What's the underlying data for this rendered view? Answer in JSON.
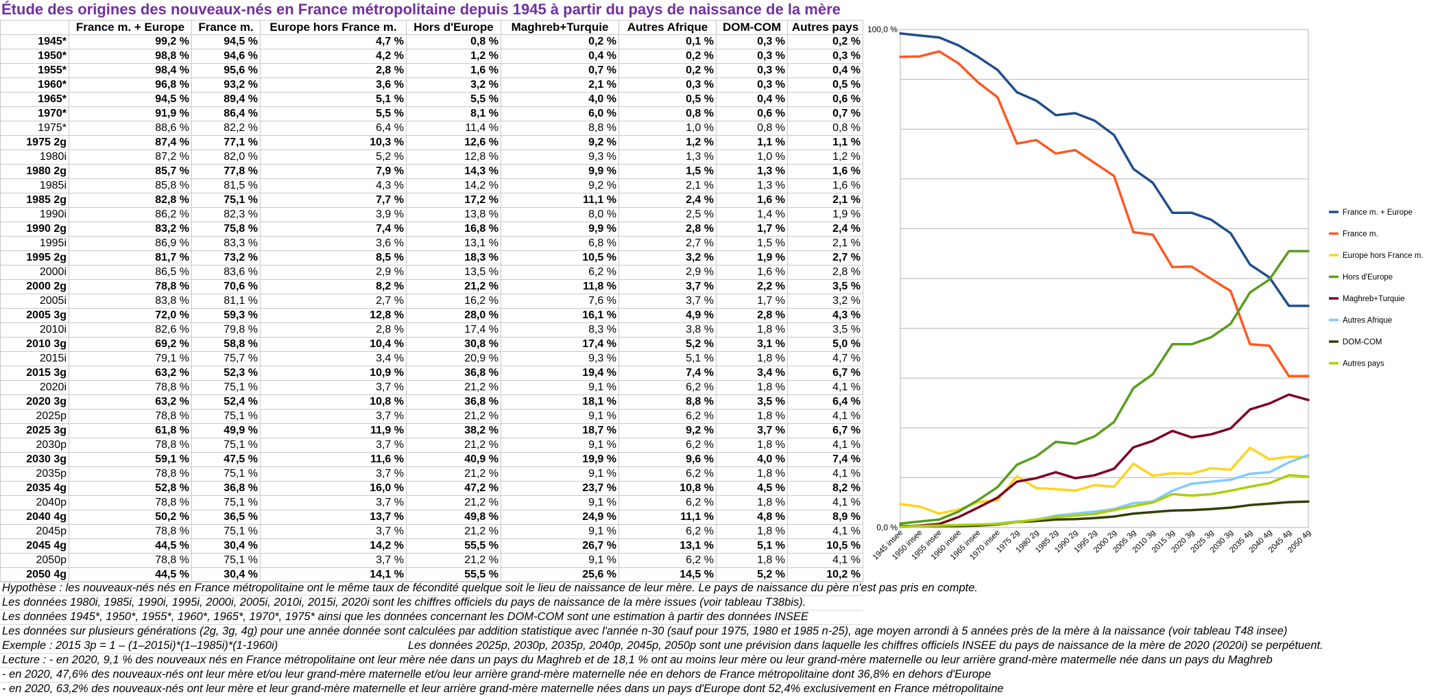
{
  "title": "Étude des origines des nouveaux-nés en France métropolitaine depuis 1945 à partir du pays de naissance de la mère",
  "table": {
    "headers": [
      "",
      "France m. + Europe",
      "France m.",
      "Europe hors France m.",
      "Hors d'Europe",
      "Maghreb+Turquie",
      "Autres Afrique",
      "DOM-COM",
      "Autres pays"
    ],
    "rows": [
      {
        "bold": true,
        "cells": [
          "1945*",
          "99,2 %",
          "94,5 %",
          "4,7 %",
          "0,8 %",
          "0,2 %",
          "0,1 %",
          "0,3 %",
          "0,2 %"
        ]
      },
      {
        "bold": true,
        "cells": [
          "1950*",
          "98,8 %",
          "94,6 %",
          "4,2 %",
          "1,2 %",
          "0,4 %",
          "0,2 %",
          "0,3 %",
          "0,3 %"
        ]
      },
      {
        "bold": true,
        "cells": [
          "1955*",
          "98,4 %",
          "95,6 %",
          "2,8 %",
          "1,6 %",
          "0,7 %",
          "0,2 %",
          "0,3 %",
          "0,4 %"
        ]
      },
      {
        "bold": true,
        "cells": [
          "1960*",
          "96,8 %",
          "93,2 %",
          "3,6 %",
          "3,2 %",
          "2,1 %",
          "0,3 %",
          "0,3 %",
          "0,5 %"
        ]
      },
      {
        "bold": true,
        "cells": [
          "1965*",
          "94,5 %",
          "89,4 %",
          "5,1 %",
          "5,5 %",
          "4,0 %",
          "0,5 %",
          "0,4 %",
          "0,6 %"
        ]
      },
      {
        "bold": true,
        "cells": [
          "1970*",
          "91,9 %",
          "86,4 %",
          "5,5 %",
          "8,1 %",
          "6,0 %",
          "0,8 %",
          "0,6 %",
          "0,7 %"
        ]
      },
      {
        "bold": false,
        "cells": [
          "1975*",
          "88,6 %",
          "82,2 %",
          "6,4 %",
          "11,4 %",
          "8,8 %",
          "1,0 %",
          "0,8 %",
          "0,8 %"
        ]
      },
      {
        "bold": true,
        "cells": [
          "1975 2g",
          "87,4 %",
          "77,1 %",
          "10,3 %",
          "12,6 %",
          "9,2 %",
          "1,2 %",
          "1,1 %",
          "1,1 %"
        ]
      },
      {
        "bold": false,
        "cells": [
          "1980i",
          "87,2 %",
          "82,0 %",
          "5,2 %",
          "12,8 %",
          "9,3 %",
          "1,3 %",
          "1,0 %",
          "1,2 %"
        ]
      },
      {
        "bold": true,
        "cells": [
          "1980 2g",
          "85,7 %",
          "77,8 %",
          "7,9 %",
          "14,3 %",
          "9,9 %",
          "1,5 %",
          "1,3 %",
          "1,6 %"
        ]
      },
      {
        "bold": false,
        "cells": [
          "1985i",
          "85,8 %",
          "81,5 %",
          "4,3 %",
          "14,2 %",
          "9,2 %",
          "2,1 %",
          "1,3 %",
          "1,6 %"
        ]
      },
      {
        "bold": true,
        "cells": [
          "1985 2g",
          "82,8 %",
          "75,1 %",
          "7,7 %",
          "17,2 %",
          "11,1 %",
          "2,4 %",
          "1,6 %",
          "2,1 %"
        ]
      },
      {
        "bold": false,
        "cells": [
          "1990i",
          "86,2 %",
          "82,3 %",
          "3,9 %",
          "13,8 %",
          "8,0 %",
          "2,5 %",
          "1,4 %",
          "1,9 %"
        ]
      },
      {
        "bold": true,
        "cells": [
          "1990 2g",
          "83,2 %",
          "75,8 %",
          "7,4 %",
          "16,8 %",
          "9,9 %",
          "2,8 %",
          "1,7 %",
          "2,4 %"
        ]
      },
      {
        "bold": false,
        "cells": [
          "1995i",
          "86,9 %",
          "83,3 %",
          "3,6 %",
          "13,1 %",
          "6,8 %",
          "2,7 %",
          "1,5 %",
          "2,1 %"
        ]
      },
      {
        "bold": true,
        "cells": [
          "1995 2g",
          "81,7 %",
          "73,2 %",
          "8,5 %",
          "18,3 %",
          "10,5 %",
          "3,2 %",
          "1,9 %",
          "2,7 %"
        ]
      },
      {
        "bold": false,
        "cells": [
          "2000i",
          "86,5 %",
          "83,6 %",
          "2,9 %",
          "13,5 %",
          "6,2 %",
          "2,9 %",
          "1,6 %",
          "2,8 %"
        ]
      },
      {
        "bold": true,
        "cells": [
          "2000 2g",
          "78,8 %",
          "70,6 %",
          "8,2 %",
          "21,2 %",
          "11,8 %",
          "3,7 %",
          "2,2 %",
          "3,5 %"
        ]
      },
      {
        "bold": false,
        "cells": [
          "2005i",
          "83,8 %",
          "81,1 %",
          "2,7 %",
          "16,2 %",
          "7,6 %",
          "3,7 %",
          "1,7 %",
          "3,2 %"
        ]
      },
      {
        "bold": true,
        "cells": [
          "2005 3g",
          "72,0 %",
          "59,3 %",
          "12,8 %",
          "28,0 %",
          "16,1 %",
          "4,9 %",
          "2,8 %",
          "4,3 %"
        ]
      },
      {
        "bold": false,
        "cells": [
          "2010i",
          "82,6 %",
          "79,8 %",
          "2,8 %",
          "17,4 %",
          "8,3 %",
          "3,8 %",
          "1,8 %",
          "3,5 %"
        ]
      },
      {
        "bold": true,
        "cells": [
          "2010 3g",
          "69,2 %",
          "58,8 %",
          "10,4 %",
          "30,8 %",
          "17,4 %",
          "5,2 %",
          "3,1 %",
          "5,0 %"
        ]
      },
      {
        "bold": false,
        "cells": [
          "2015i",
          "79,1 %",
          "75,7 %",
          "3,4 %",
          "20,9 %",
          "9,3 %",
          "5,1 %",
          "1,8 %",
          "4,7 %"
        ]
      },
      {
        "bold": true,
        "cells": [
          "2015 3g",
          "63,2 %",
          "52,3 %",
          "10,9 %",
          "36,8 %",
          "19,4 %",
          "7,4 %",
          "3,4 %",
          "6,7 %"
        ]
      },
      {
        "bold": false,
        "cells": [
          "2020i",
          "78,8 %",
          "75,1 %",
          "3,7 %",
          "21,2 %",
          "9,1 %",
          "6,2 %",
          "1,8 %",
          "4,1 %"
        ]
      },
      {
        "bold": true,
        "cells": [
          "2020 3g",
          "63,2 %",
          "52,4 %",
          "10,8 %",
          "36,8 %",
          "18,1 %",
          "8,8 %",
          "3,5 %",
          "6,4 %"
        ]
      },
      {
        "bold": false,
        "cells": [
          "2025p",
          "78,8 %",
          "75,1 %",
          "3,7 %",
          "21,2 %",
          "9,1 %",
          "6,2 %",
          "1,8 %",
          "4,1 %"
        ]
      },
      {
        "bold": true,
        "cells": [
          "2025 3g",
          "61,8 %",
          "49,9 %",
          "11,9 %",
          "38,2 %",
          "18,7 %",
          "9,2 %",
          "3,7 %",
          "6,7 %"
        ]
      },
      {
        "bold": false,
        "cells": [
          "2030p",
          "78,8 %",
          "75,1 %",
          "3,7 %",
          "21,2 %",
          "9,1 %",
          "6,2 %",
          "1,8 %",
          "4,1 %"
        ]
      },
      {
        "bold": true,
        "cells": [
          "2030 3g",
          "59,1 %",
          "47,5 %",
          "11,6 %",
          "40,9 %",
          "19,9 %",
          "9,6 %",
          "4,0 %",
          "7,4 %"
        ]
      },
      {
        "bold": false,
        "cells": [
          "2035p",
          "78,8 %",
          "75,1 %",
          "3,7 %",
          "21,2 %",
          "9,1 %",
          "6,2 %",
          "1,8 %",
          "4,1 %"
        ]
      },
      {
        "bold": true,
        "cells": [
          "2035 4g",
          "52,8 %",
          "36,8 %",
          "16,0 %",
          "47,2 %",
          "23,7 %",
          "10,8 %",
          "4,5 %",
          "8,2 %"
        ]
      },
      {
        "bold": false,
        "cells": [
          "2040p",
          "78,8 %",
          "75,1 %",
          "3,7 %",
          "21,2 %",
          "9,1 %",
          "6,2 %",
          "1,8 %",
          "4,1 %"
        ]
      },
      {
        "bold": true,
        "cells": [
          "2040 4g",
          "50,2 %",
          "36,5 %",
          "13,7 %",
          "49,8 %",
          "24,9 %",
          "11,1 %",
          "4,8 %",
          "8,9 %"
        ]
      },
      {
        "bold": false,
        "cells": [
          "2045p",
          "78,8 %",
          "75,1 %",
          "3,7 %",
          "21,2 %",
          "9,1 %",
          "6,2 %",
          "1,8 %",
          "4,1 %"
        ]
      },
      {
        "bold": true,
        "cells": [
          "2045 4g",
          "44,5 %",
          "30,4 %",
          "14,2 %",
          "55,5 %",
          "26,7 %",
          "13,1 %",
          "5,1 %",
          "10,5 %"
        ]
      },
      {
        "bold": false,
        "cells": [
          "2050p",
          "78,8 %",
          "75,1 %",
          "3,7 %",
          "21,2 %",
          "9,1 %",
          "6,2 %",
          "1,8 %",
          "4,1 %"
        ]
      },
      {
        "bold": true,
        "cells": [
          "2050 4g",
          "44,5 %",
          "30,4 %",
          "14,1 %",
          "55,5 %",
          "25,6 %",
          "14,5 %",
          "5,2 %",
          "10,2 %"
        ]
      }
    ]
  },
  "chart_data": {
    "type": "line",
    "x": [
      "1945 insee",
      "1950 insee",
      "1955 insee",
      "1960 insee",
      "1965 insee",
      "1970 insee",
      "1975 2g",
      "1980 2g",
      "1985 2g",
      "1990 2g",
      "1995 2g",
      "2000 2g",
      "2005 3g",
      "2010 3g",
      "2015 3g",
      "2020 3g",
      "2025 3g",
      "2030 3g",
      "2035 4g",
      "2040 4g",
      "2045 4g",
      "2050 4g"
    ],
    "ylim": [
      0,
      100
    ],
    "y_tick_labels": [
      "100,0 %",
      "0,0 %"
    ],
    "grid": true,
    "legend_position": "right",
    "series": [
      {
        "name": "France m. + Europe",
        "color": "#1f4e8c",
        "values": [
          99.2,
          98.8,
          98.4,
          96.8,
          94.5,
          91.9,
          87.4,
          85.7,
          82.8,
          83.2,
          81.7,
          78.8,
          72.0,
          69.2,
          63.2,
          63.2,
          61.8,
          59.1,
          52.8,
          50.2,
          44.5,
          44.5
        ]
      },
      {
        "name": "France m.",
        "color": "#ff5722",
        "values": [
          94.5,
          94.6,
          95.6,
          93.2,
          89.4,
          86.4,
          77.1,
          77.8,
          75.1,
          75.8,
          73.2,
          70.6,
          59.3,
          58.8,
          52.3,
          52.4,
          49.9,
          47.5,
          36.8,
          36.5,
          30.4,
          30.4
        ]
      },
      {
        "name": "Europe hors France m.",
        "color": "#ffd320",
        "values": [
          4.7,
          4.2,
          2.8,
          3.6,
          5.1,
          5.5,
          10.3,
          7.9,
          7.7,
          7.4,
          8.5,
          8.2,
          12.8,
          10.4,
          10.9,
          10.8,
          11.9,
          11.6,
          16.0,
          13.7,
          14.2,
          14.1
        ]
      },
      {
        "name": "Hors d'Europe",
        "color": "#579d1c",
        "values": [
          0.8,
          1.2,
          1.6,
          3.2,
          5.5,
          8.1,
          12.6,
          14.3,
          17.2,
          16.8,
          18.3,
          21.2,
          28.0,
          30.8,
          36.8,
          36.8,
          38.2,
          40.9,
          47.2,
          49.8,
          55.5,
          55.5
        ]
      },
      {
        "name": "Maghreb+Turquie",
        "color": "#7e0021",
        "values": [
          0.2,
          0.4,
          0.7,
          2.1,
          4.0,
          6.0,
          9.2,
          9.9,
          11.1,
          9.9,
          10.5,
          11.8,
          16.1,
          17.4,
          19.4,
          18.1,
          18.7,
          19.9,
          23.7,
          24.9,
          26.7,
          25.6
        ]
      },
      {
        "name": "Autres Afrique",
        "color": "#83caff",
        "values": [
          0.1,
          0.2,
          0.2,
          0.3,
          0.5,
          0.8,
          1.2,
          1.5,
          2.4,
          2.8,
          3.2,
          3.7,
          4.9,
          5.2,
          7.4,
          8.8,
          9.2,
          9.6,
          10.8,
          11.1,
          13.1,
          14.5
        ]
      },
      {
        "name": "DOM-COM",
        "color": "#314004",
        "values": [
          0.3,
          0.3,
          0.3,
          0.3,
          0.4,
          0.6,
          1.1,
          1.3,
          1.6,
          1.7,
          1.9,
          2.2,
          2.8,
          3.1,
          3.4,
          3.5,
          3.7,
          4.0,
          4.5,
          4.8,
          5.1,
          5.2
        ]
      },
      {
        "name": "Autres pays",
        "color": "#aecf00",
        "values": [
          0.2,
          0.3,
          0.4,
          0.5,
          0.6,
          0.7,
          1.1,
          1.6,
          2.1,
          2.4,
          2.7,
          3.5,
          4.3,
          5.0,
          6.7,
          6.4,
          6.7,
          7.4,
          8.2,
          8.9,
          10.5,
          10.2
        ]
      }
    ]
  },
  "notes": {
    "line1": "Hypothèse : les nouveaux-nés nés en France métropolitaine ont le même taux de fécondité quelque soit le lieu de naissance de leur mère.  Le pays de naissance du père n'est pas pris en compte.",
    "line2": "Les données 1980i, 1985i, 1990i, 1995i, 2000i, 2005i, 2010i, 2015i, 2020i sont les chiffres officiels du pays de naissance de la mère issues (voir tableau T38bis).",
    "line3": "Les données 1945*, 1950*, 1955*, 1960*, 1965*, 1970*, 1975* ainsi que les données concernant les DOM-COM sont une estimation à partir des données INSEE",
    "line4": "Les données sur plusieurs générations (2g, 3g, 4g) pour une année donnée sont calculées par addition statistique avec l'année n-30 (sauf pour 1975, 1980 et 1985 n-25), age moyen arrondi à 5 années près de la mère à la naissance (voir tableau T48 insee)",
    "line5a": "Exemple : 2015 3p = 1 – (1–2015i)*(1–1985i)*(1-1960i)",
    "line5b": "Les données 2025p, 2030p, 2035p, 2040p, 2045p, 2050p sont une prévision dans laquelle les chiffres officiels INSEE du pays de naissance de la mère de 2020 (2020i) se perpétuent.",
    "line6": "Lecture : - en 2020, 9,1 % des nouveaux nés en France métropolitaine ont leur mère née dans un pays du Maghreb et de 18,1 % ont au moins leur mère ou leur grand-mère maternelle ou leur arrière grand-mère matermelle née dans un pays du Maghreb",
    "line7": "- en 2020, 47,6% des nouveaux-nés ont leur mère et/ou leur grand-mère maternelle et/ou leur arrière grand-mère maternelle née en dehors de France métropolitaine dont 36,8% en dehors d'Europe",
    "line8": "- en 2020, 63,2% des nouveaux-nés ont leur mère et leur grand-mère maternelle et leur arrière grand-mère maternelle nées dans un pays d'Europe dont 52,4% exclusivement en France métropolitaine"
  }
}
